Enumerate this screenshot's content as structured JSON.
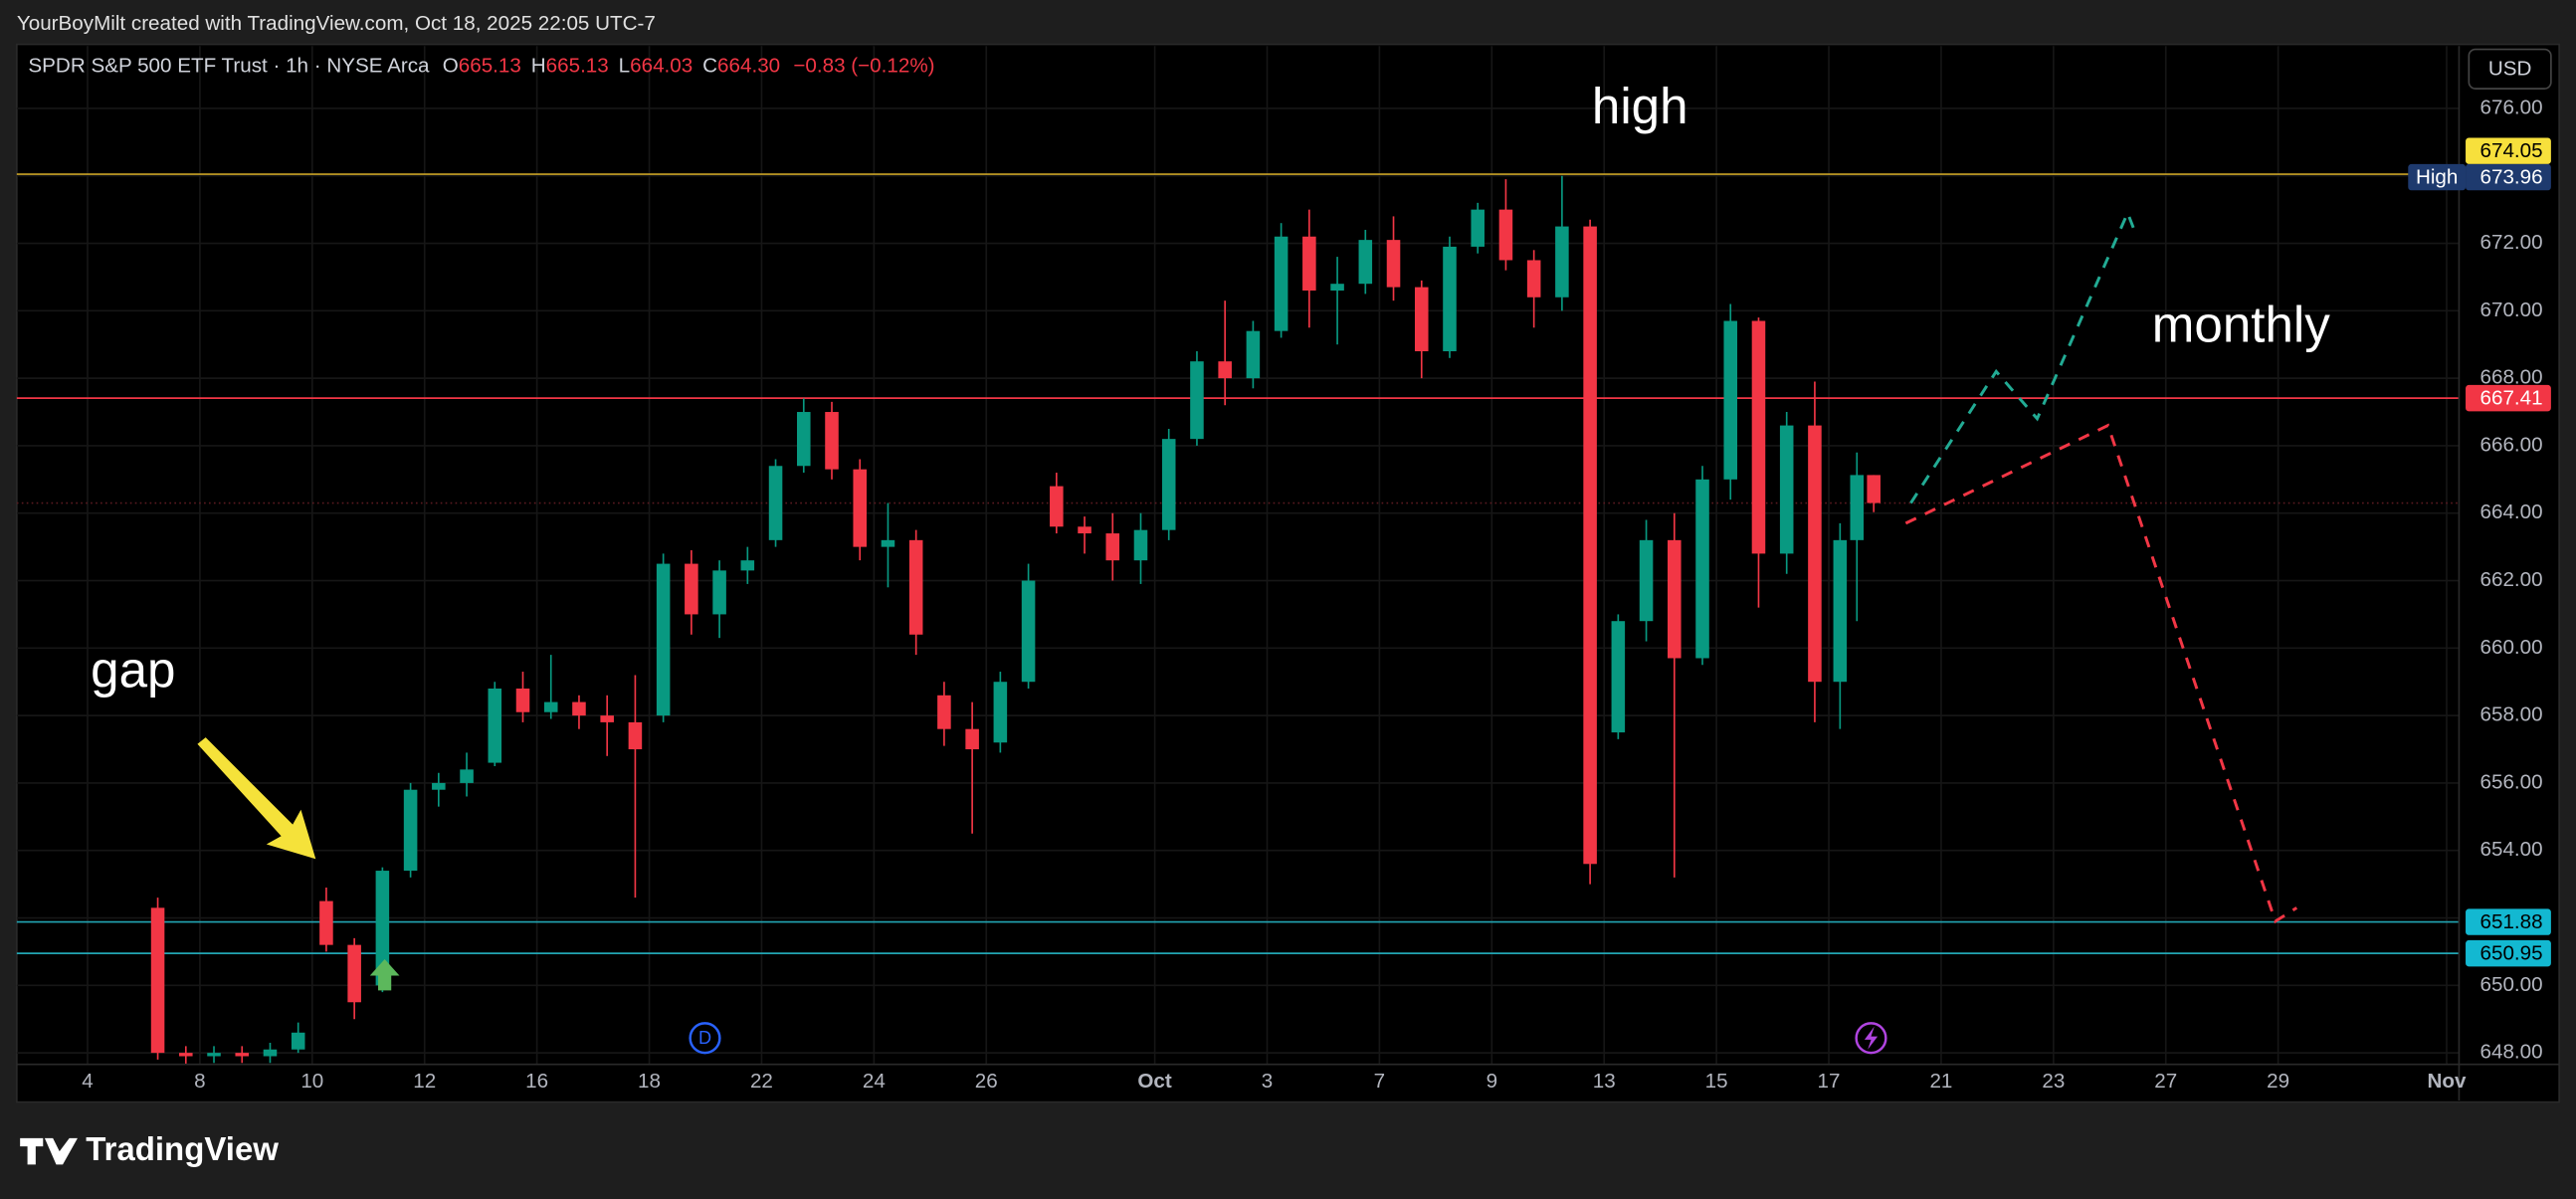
{
  "header": {
    "attribution": "YourBoyMilt created with TradingView.com, Oct 18, 2025 22:05 UTC-7",
    "symbol": "SPDR S&P 500 ETF Trust · 1h · NYSE Arca",
    "ohlc": [
      {
        "name": "O",
        "value": "665.13"
      },
      {
        "name": "H",
        "value": "665.13"
      },
      {
        "name": "L",
        "value": "664.03"
      },
      {
        "name": "C",
        "value": "664.30"
      }
    ],
    "change": "−0.83 (−0.12%)",
    "currency": "USD"
  },
  "annotations": {
    "gap": "gap",
    "high": "high",
    "monthly": "monthly",
    "dividend": "D"
  },
  "footer": {
    "brand": "TradingView"
  },
  "chart_data": {
    "type": "candlestick",
    "up_color": "#089981",
    "down_color": "#f23645",
    "grid": true,
    "x": [
      1.25,
      1.75,
      2.25,
      2.75,
      3.25,
      3.75,
      4.25,
      4.75,
      5.25,
      5.75,
      6.25,
      6.75,
      7.25,
      7.75,
      8.25,
      8.75,
      9.25,
      9.75,
      10.25,
      10.75,
      11.25,
      11.75,
      12.25,
      12.75,
      13.25,
      13.75,
      14.25,
      14.75,
      15.25,
      15.75,
      16.25,
      16.75,
      17.25,
      17.75,
      18.25,
      18.75,
      19.25,
      19.75,
      20.25,
      20.75,
      21.25,
      21.75,
      22.25,
      22.75,
      23.25,
      23.75,
      24.25,
      24.75,
      25.25,
      25.75,
      26.25,
      26.75,
      27.25,
      27.75,
      28.25,
      28.75,
      29.25,
      29.75,
      30.25,
      30.75,
      31.2,
      31.5,
      31.8
    ],
    "open": [
      652.3,
      648.0,
      647.9,
      648.0,
      647.9,
      648.1,
      652.5,
      651.2,
      650.0,
      653.4,
      655.8,
      656.0,
      656.6,
      658.8,
      658.1,
      658.4,
      658.0,
      657.8,
      658.0,
      662.5,
      661.0,
      662.3,
      663.2,
      665.4,
      667.0,
      665.3,
      663.0,
      663.2,
      658.6,
      657.6,
      657.2,
      659.0,
      664.8,
      663.6,
      663.4,
      662.6,
      663.5,
      666.2,
      668.5,
      668.0,
      669.4,
      672.2,
      670.6,
      670.8,
      672.1,
      670.7,
      668.8,
      671.9,
      673.0,
      671.5,
      670.4,
      672.5,
      657.5,
      660.8,
      663.2,
      659.7,
      665.0,
      669.7,
      662.8,
      666.6,
      659.0,
      663.2,
      665.13
    ],
    "high": [
      652.6,
      648.2,
      648.2,
      648.2,
      648.3,
      648.9,
      652.9,
      651.4,
      653.5,
      656.0,
      656.3,
      656.9,
      659.0,
      659.3,
      659.8,
      658.6,
      658.6,
      659.2,
      662.8,
      662.9,
      662.6,
      663.0,
      665.6,
      667.4,
      667.3,
      665.6,
      664.3,
      663.5,
      659.0,
      658.4,
      659.3,
      662.5,
      665.2,
      663.9,
      664.0,
      664.0,
      666.5,
      668.8,
      670.3,
      669.7,
      672.6,
      673.0,
      671.6,
      672.4,
      672.8,
      670.9,
      672.2,
      673.2,
      673.9,
      671.8,
      674.0,
      672.7,
      661.0,
      663.8,
      664.0,
      665.4,
      670.2,
      669.8,
      667.0,
      667.9,
      663.7,
      665.8,
      665.13
    ],
    "low": [
      647.8,
      647.6,
      647.7,
      647.7,
      647.7,
      648.0,
      651.0,
      649.0,
      649.8,
      653.2,
      655.3,
      655.6,
      656.5,
      657.8,
      657.9,
      657.6,
      656.8,
      652.6,
      657.8,
      660.4,
      660.3,
      661.9,
      663.0,
      665.2,
      665.0,
      662.6,
      661.8,
      659.8,
      657.1,
      654.5,
      656.9,
      658.8,
      663.4,
      662.8,
      662.0,
      661.9,
      663.2,
      666.0,
      667.2,
      667.7,
      669.2,
      669.5,
      669.0,
      670.5,
      670.3,
      668.0,
      668.6,
      671.7,
      671.2,
      669.5,
      670.0,
      653.0,
      657.3,
      660.2,
      653.2,
      659.5,
      664.4,
      661.2,
      662.2,
      657.8,
      657.6,
      660.8,
      664.03
    ],
    "close": [
      648.0,
      647.9,
      648.0,
      647.9,
      648.1,
      648.6,
      651.2,
      649.5,
      653.4,
      655.8,
      656.0,
      656.4,
      658.8,
      658.1,
      658.4,
      658.0,
      657.8,
      657.0,
      662.5,
      661.0,
      662.3,
      662.6,
      665.4,
      667.0,
      665.3,
      663.0,
      663.2,
      660.4,
      657.6,
      657.0,
      659.0,
      662.0,
      663.6,
      663.4,
      662.6,
      663.5,
      666.2,
      668.5,
      668.0,
      669.4,
      672.2,
      670.6,
      670.8,
      672.1,
      670.7,
      668.8,
      671.9,
      673.0,
      671.5,
      670.4,
      672.5,
      653.6,
      660.8,
      663.2,
      659.7,
      665.0,
      669.7,
      662.8,
      666.6,
      659.0,
      663.2,
      665.13,
      664.3
    ],
    "xlim": [
      -1.26,
      42.22
    ],
    "ylim": [
      647.66,
      677.85
    ],
    "xticks": [
      {
        "value": 0,
        "label": "4"
      },
      {
        "value": 2,
        "label": "8"
      },
      {
        "value": 4,
        "label": "10"
      },
      {
        "value": 6,
        "label": "12"
      },
      {
        "value": 8,
        "label": "16"
      },
      {
        "value": 10,
        "label": "18"
      },
      {
        "value": 12,
        "label": "22"
      },
      {
        "value": 14,
        "label": "24"
      },
      {
        "value": 16,
        "label": "26"
      },
      {
        "value": 19,
        "label": "Oct"
      },
      {
        "value": 21,
        "label": "3"
      },
      {
        "value": 23,
        "label": "7"
      },
      {
        "value": 25,
        "label": "9"
      },
      {
        "value": 27,
        "label": "13"
      },
      {
        "value": 29,
        "label": "15"
      },
      {
        "value": 31,
        "label": "17"
      },
      {
        "value": 33,
        "label": "21"
      },
      {
        "value": 35,
        "label": "23"
      },
      {
        "value": 37,
        "label": "27"
      },
      {
        "value": 39,
        "label": "29"
      },
      {
        "value": 42,
        "label": "Nov"
      }
    ],
    "yticks": [
      {
        "value": 648,
        "label": "648.00"
      },
      {
        "value": 650,
        "label": "650.00"
      },
      {
        "value": 652,
        "label": "652.00"
      },
      {
        "value": 654,
        "label": "654.00"
      },
      {
        "value": 656,
        "label": "656.00"
      },
      {
        "value": 658,
        "label": "658.00"
      },
      {
        "value": 660,
        "label": "660.00"
      },
      {
        "value": 662,
        "label": "662.00"
      },
      {
        "value": 664,
        "label": "664.00"
      },
      {
        "value": 666,
        "label": "666.00"
      },
      {
        "value": 668,
        "label": "668.00"
      },
      {
        "value": 670,
        "label": "670.00"
      },
      {
        "value": 672,
        "label": "672.00"
      },
      {
        "value": 674,
        "label": "674.00"
      },
      {
        "value": 676,
        "label": "676.00"
      }
    ],
    "levels": [
      {
        "value": 674.05,
        "color": "#c9a227",
        "label_color": "#f7e03c",
        "text_color": "#000000"
      },
      {
        "value": 667.41,
        "color": "#f23645",
        "label_color": "#f23645",
        "text_color": "#ffffff"
      },
      {
        "value": 651.88,
        "color": "#22a6b3",
        "label_color": "#13b8d1",
        "text_color": "#000000"
      },
      {
        "value": 650.95,
        "color": "#22a6b3",
        "label_color": "#13b8d1",
        "text_color": "#000000"
      }
    ],
    "high_marker": {
      "name": "High",
      "value": 673.96
    },
    "drawings": [
      {
        "color": "#22ab94",
        "x": [
          32.46,
          33.98,
          34.71,
          36.32,
          36.46
        ],
        "y": [
          664.3,
          668.2,
          666.8,
          672.9,
          672.3
        ]
      },
      {
        "color": "#f23645",
        "x": [
          32.37,
          35.97,
          38.95,
          39.33
        ],
        "y": [
          663.7,
          666.6,
          651.9,
          652.3
        ]
      }
    ]
  }
}
